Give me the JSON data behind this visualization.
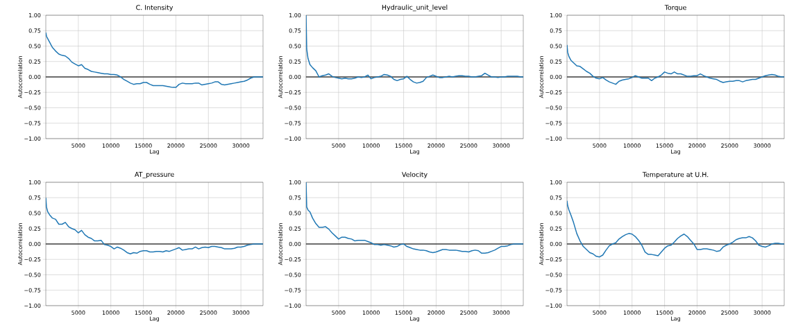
{
  "chart_data": [
    {
      "type": "line",
      "title": "C. Intensity",
      "xlabel": "Lag",
      "ylabel": "Autocorrelation",
      "color": "#1f77b4",
      "grid": true,
      "x": [
        1,
        100,
        300,
        600,
        1000,
        1500,
        2000,
        2500,
        3000,
        3500,
        4000,
        4500,
        5000,
        5500,
        6000,
        6500,
        7000,
        7500,
        8000,
        8500,
        9000,
        9500,
        10000,
        10500,
        11000,
        11500,
        12000,
        12500,
        13000,
        13500,
        14000,
        14500,
        15000,
        15500,
        16000,
        16500,
        17000,
        17500,
        18000,
        18500,
        19000,
        19500,
        20000,
        20500,
        21000,
        21500,
        22000,
        22500,
        23000,
        23500,
        24000,
        24500,
        25000,
        25500,
        26000,
        26500,
        27000,
        27500,
        28000,
        28500,
        29000,
        29500,
        30000,
        30500,
        31000,
        31500,
        32000,
        32500,
        33000,
        33400
      ],
      "values": [
        0.72,
        0.66,
        0.62,
        0.56,
        0.48,
        0.42,
        0.37,
        0.35,
        0.34,
        0.3,
        0.24,
        0.21,
        0.18,
        0.2,
        0.14,
        0.12,
        0.09,
        0.08,
        0.07,
        0.06,
        0.05,
        0.05,
        0.04,
        0.04,
        0.03,
        0.0,
        -0.04,
        -0.07,
        -0.1,
        -0.12,
        -0.11,
        -0.11,
        -0.09,
        -0.09,
        -0.12,
        -0.14,
        -0.14,
        -0.14,
        -0.14,
        -0.15,
        -0.16,
        -0.17,
        -0.17,
        -0.12,
        -0.1,
        -0.11,
        -0.11,
        -0.11,
        -0.1,
        -0.1,
        -0.13,
        -0.12,
        -0.11,
        -0.1,
        -0.08,
        -0.08,
        -0.12,
        -0.13,
        -0.12,
        -0.11,
        -0.1,
        -0.09,
        -0.08,
        -0.07,
        -0.05,
        -0.02,
        0.0,
        0.0,
        0.0,
        0.0
      ],
      "xlim": [
        1,
        33400
      ],
      "xticks": [
        5000,
        10000,
        15000,
        20000,
        25000,
        30000
      ],
      "ylim": [
        -1,
        1
      ],
      "yticks": [
        {
          "value": -1,
          "label": "−1.00"
        },
        {
          "value": -0.75,
          "label": "−0.75"
        },
        {
          "value": -0.5,
          "label": "−0.50"
        },
        {
          "value": -0.25,
          "label": "−0.25"
        },
        {
          "value": 0,
          "label": "0.00"
        },
        {
          "value": 0.25,
          "label": "0.25"
        },
        {
          "value": 0.5,
          "label": "0.50"
        },
        {
          "value": 0.75,
          "label": "0.75"
        },
        {
          "value": 1,
          "label": "1.00"
        }
      ],
      "ref_lines": [
        {
          "axis": "y",
          "value": 0,
          "color": "#404040",
          "line_style": "solid"
        }
      ]
    },
    {
      "type": "line",
      "title": "Hydraulic_unit_level",
      "xlabel": "Lag",
      "ylabel": "Autocorrelation",
      "color": "#1f77b4",
      "grid": true,
      "x": [
        1,
        100,
        300,
        600,
        1000,
        1500,
        2000,
        2500,
        3000,
        3500,
        4000,
        4500,
        5000,
        5500,
        6000,
        6500,
        7000,
        7500,
        8000,
        8500,
        9000,
        9500,
        10000,
        10500,
        11000,
        11500,
        12000,
        12500,
        13000,
        13500,
        14000,
        14500,
        15000,
        15500,
        16000,
        16500,
        17000,
        17500,
        18000,
        18500,
        19000,
        19500,
        20000,
        20500,
        21000,
        21500,
        22000,
        22500,
        23000,
        23500,
        24000,
        24500,
        25000,
        25500,
        26000,
        26500,
        27000,
        27500,
        28000,
        28500,
        29000,
        29500,
        30000,
        30500,
        31000,
        31500,
        32000,
        32500,
        33000,
        33400
      ],
      "values": [
        1.0,
        0.45,
        0.3,
        0.2,
        0.15,
        0.1,
        0.0,
        0.02,
        0.03,
        0.05,
        0.01,
        -0.01,
        -0.02,
        -0.03,
        -0.02,
        -0.03,
        -0.03,
        -0.02,
        0.0,
        -0.01,
        0.0,
        0.03,
        -0.03,
        -0.01,
        0.0,
        0.01,
        0.04,
        0.03,
        0.01,
        -0.04,
        -0.06,
        -0.04,
        -0.03,
        0.01,
        -0.04,
        -0.08,
        -0.1,
        -0.09,
        -0.07,
        -0.01,
        0.01,
        0.03,
        0.01,
        -0.01,
        -0.01,
        0.0,
        0.01,
        0.0,
        0.01,
        0.02,
        0.02,
        0.01,
        0.01,
        0.0,
        0.0,
        0.01,
        0.02,
        0.06,
        0.03,
        0.0,
        0.0,
        -0.01,
        0.0,
        0.0,
        0.01,
        0.01,
        0.01,
        0.01,
        0.0,
        0.0
      ],
      "xlim": [
        1,
        33400
      ],
      "xticks": [
        5000,
        10000,
        15000,
        20000,
        25000,
        30000
      ],
      "ylim": [
        -1,
        1
      ],
      "yticks": [
        {
          "value": -1,
          "label": "−1.00"
        },
        {
          "value": -0.75,
          "label": "−0.75"
        },
        {
          "value": -0.5,
          "label": "−0.50"
        },
        {
          "value": -0.25,
          "label": "−0.25"
        },
        {
          "value": 0,
          "label": "0.00"
        },
        {
          "value": 0.25,
          "label": "0.25"
        },
        {
          "value": 0.5,
          "label": "0.50"
        },
        {
          "value": 0.75,
          "label": "0.75"
        },
        {
          "value": 1,
          "label": "1.00"
        }
      ],
      "ref_lines": [
        {
          "axis": "y",
          "value": 0,
          "color": "#404040",
          "line_style": "solid"
        }
      ]
    },
    {
      "type": "line",
      "title": "Torque",
      "xlabel": "Lag",
      "ylabel": "Autocorrelation",
      "color": "#1f77b4",
      "grid": true,
      "x": [
        1,
        100,
        300,
        600,
        1000,
        1500,
        2000,
        2500,
        3000,
        3500,
        4000,
        4500,
        5000,
        5500,
        6000,
        6500,
        7000,
        7500,
        8000,
        8500,
        9000,
        9500,
        10000,
        10500,
        11000,
        11500,
        12000,
        12500,
        13000,
        13500,
        14000,
        14500,
        15000,
        15500,
        16000,
        16500,
        17000,
        17500,
        18000,
        18500,
        19000,
        19500,
        20000,
        20500,
        21000,
        21500,
        22000,
        22500,
        23000,
        23500,
        24000,
        24500,
        25000,
        25500,
        26000,
        26500,
        27000,
        27500,
        28000,
        28500,
        29000,
        29500,
        30000,
        30500,
        31000,
        31500,
        32000,
        32500,
        33000,
        33400
      ],
      "values": [
        0.52,
        0.4,
        0.33,
        0.27,
        0.23,
        0.18,
        0.17,
        0.13,
        0.09,
        0.06,
        0.01,
        -0.02,
        -0.03,
        -0.01,
        -0.05,
        -0.08,
        -0.1,
        -0.12,
        -0.07,
        -0.05,
        -0.04,
        -0.03,
        -0.01,
        0.02,
        0.0,
        -0.02,
        -0.02,
        -0.02,
        -0.06,
        -0.02,
        0.0,
        0.03,
        0.08,
        0.06,
        0.05,
        0.08,
        0.05,
        0.05,
        0.03,
        0.01,
        0.01,
        0.02,
        0.02,
        0.05,
        0.02,
        0.0,
        -0.02,
        -0.03,
        -0.04,
        -0.07,
        -0.09,
        -0.08,
        -0.07,
        -0.07,
        -0.06,
        -0.06,
        -0.08,
        -0.06,
        -0.05,
        -0.04,
        -0.04,
        -0.02,
        0.0,
        0.02,
        0.03,
        0.04,
        0.03,
        0.01,
        0.0,
        0.0
      ],
      "xlim": [
        1,
        33400
      ],
      "xticks": [
        5000,
        10000,
        15000,
        20000,
        25000,
        30000
      ],
      "ylim": [
        -1,
        1
      ],
      "yticks": [
        {
          "value": -1,
          "label": "−1.00"
        },
        {
          "value": -0.75,
          "label": "−0.75"
        },
        {
          "value": -0.5,
          "label": "−0.50"
        },
        {
          "value": -0.25,
          "label": "−0.25"
        },
        {
          "value": 0,
          "label": "0.00"
        },
        {
          "value": 0.25,
          "label": "0.25"
        },
        {
          "value": 0.5,
          "label": "0.50"
        },
        {
          "value": 0.75,
          "label": "0.75"
        },
        {
          "value": 1,
          "label": "1.00"
        }
      ],
      "ref_lines": [
        {
          "axis": "y",
          "value": 0,
          "color": "#404040",
          "line_style": "solid"
        }
      ]
    },
    {
      "type": "line",
      "title": "AT_pressure",
      "xlabel": "Lag",
      "ylabel": "Autocorrelation",
      "color": "#1f77b4",
      "grid": true,
      "x": [
        1,
        100,
        300,
        600,
        1000,
        1500,
        2000,
        2500,
        3000,
        3500,
        4000,
        4500,
        5000,
        5500,
        6000,
        6500,
        7000,
        7500,
        8000,
        8500,
        9000,
        9500,
        10000,
        10500,
        11000,
        11500,
        12000,
        12500,
        13000,
        13500,
        14000,
        14500,
        15000,
        15500,
        16000,
        16500,
        17000,
        17500,
        18000,
        18500,
        19000,
        19500,
        20000,
        20500,
        21000,
        21500,
        22000,
        22500,
        23000,
        23500,
        24000,
        24500,
        25000,
        25500,
        26000,
        26500,
        27000,
        27500,
        28000,
        28500,
        29000,
        29500,
        30000,
        30500,
        31000,
        31500,
        32000,
        32500,
        33000,
        33400
      ],
      "values": [
        0.75,
        0.6,
        0.52,
        0.47,
        0.42,
        0.4,
        0.32,
        0.32,
        0.35,
        0.28,
        0.25,
        0.23,
        0.18,
        0.22,
        0.15,
        0.11,
        0.09,
        0.05,
        0.05,
        0.06,
        -0.01,
        -0.02,
        -0.04,
        -0.08,
        -0.05,
        -0.07,
        -0.1,
        -0.14,
        -0.16,
        -0.14,
        -0.15,
        -0.12,
        -0.11,
        -0.11,
        -0.13,
        -0.13,
        -0.12,
        -0.12,
        -0.13,
        -0.11,
        -0.12,
        -0.1,
        -0.08,
        -0.06,
        -0.1,
        -0.09,
        -0.08,
        -0.08,
        -0.05,
        -0.08,
        -0.06,
        -0.05,
        -0.06,
        -0.04,
        -0.04,
        -0.05,
        -0.06,
        -0.08,
        -0.08,
        -0.08,
        -0.07,
        -0.05,
        -0.05,
        -0.04,
        -0.02,
        -0.01,
        0.0,
        0.0,
        0.0,
        0.0
      ],
      "xlim": [
        1,
        33400
      ],
      "xticks": [
        5000,
        10000,
        15000,
        20000,
        25000,
        30000
      ],
      "ylim": [
        -1,
        1
      ],
      "yticks": [
        {
          "value": -1,
          "label": "−1.00"
        },
        {
          "value": -0.75,
          "label": "−0.75"
        },
        {
          "value": -0.5,
          "label": "−0.50"
        },
        {
          "value": -0.25,
          "label": "−0.25"
        },
        {
          "value": 0,
          "label": "0.00"
        },
        {
          "value": 0.25,
          "label": "0.25"
        },
        {
          "value": 0.5,
          "label": "0.50"
        },
        {
          "value": 0.75,
          "label": "0.75"
        },
        {
          "value": 1,
          "label": "1.00"
        }
      ],
      "ref_lines": [
        {
          "axis": "y",
          "value": 0,
          "color": "#404040",
          "line_style": "solid"
        }
      ]
    },
    {
      "type": "line",
      "title": "Velocity",
      "xlabel": "Lag",
      "ylabel": "Autocorrelation",
      "color": "#1f77b4",
      "grid": true,
      "x": [
        1,
        100,
        300,
        600,
        1000,
        1500,
        2000,
        2500,
        3000,
        3500,
        4000,
        4500,
        5000,
        5500,
        6000,
        6500,
        7000,
        7500,
        8000,
        8500,
        9000,
        9500,
        10000,
        10500,
        11000,
        11500,
        12000,
        12500,
        13000,
        13500,
        14000,
        14500,
        15000,
        15500,
        16000,
        16500,
        17000,
        17500,
        18000,
        18500,
        19000,
        19500,
        20000,
        20500,
        21000,
        21500,
        22000,
        22500,
        23000,
        23500,
        24000,
        24500,
        25000,
        25500,
        26000,
        26500,
        27000,
        27500,
        28000,
        28500,
        29000,
        29500,
        30000,
        30500,
        31000,
        31500,
        32000,
        32500,
        33000,
        33400
      ],
      "values": [
        1.0,
        0.6,
        0.55,
        0.52,
        0.42,
        0.33,
        0.27,
        0.27,
        0.28,
        0.24,
        0.18,
        0.13,
        0.08,
        0.11,
        0.11,
        0.09,
        0.08,
        0.05,
        0.06,
        0.06,
        0.06,
        0.04,
        0.02,
        -0.01,
        -0.01,
        -0.02,
        -0.01,
        -0.02,
        -0.03,
        -0.05,
        -0.04,
        -0.01,
        0.0,
        -0.04,
        -0.06,
        -0.08,
        -0.09,
        -0.1,
        -0.1,
        -0.11,
        -0.13,
        -0.14,
        -0.13,
        -0.11,
        -0.09,
        -0.09,
        -0.1,
        -0.1,
        -0.1,
        -0.11,
        -0.12,
        -0.12,
        -0.13,
        -0.11,
        -0.1,
        -0.11,
        -0.15,
        -0.15,
        -0.14,
        -0.12,
        -0.1,
        -0.07,
        -0.04,
        -0.04,
        -0.03,
        -0.01,
        0.0,
        0.0,
        0.0,
        0.0
      ],
      "xlim": [
        1,
        33400
      ],
      "xticks": [
        5000,
        10000,
        15000,
        20000,
        25000,
        30000
      ],
      "ylim": [
        -1,
        1
      ],
      "yticks": [
        {
          "value": -1,
          "label": "−1.00"
        },
        {
          "value": -0.75,
          "label": "−0.75"
        },
        {
          "value": -0.5,
          "label": "−0.50"
        },
        {
          "value": -0.25,
          "label": "−0.25"
        },
        {
          "value": 0,
          "label": "0.00"
        },
        {
          "value": 0.25,
          "label": "0.25"
        },
        {
          "value": 0.5,
          "label": "0.50"
        },
        {
          "value": 0.75,
          "label": "0.75"
        },
        {
          "value": 1,
          "label": "1.00"
        }
      ],
      "ref_lines": [
        {
          "axis": "y",
          "value": 0,
          "color": "#404040",
          "line_style": "solid"
        }
      ]
    },
    {
      "type": "line",
      "title": "Temperature at U.H.",
      "xlabel": "Lag",
      "ylabel": "Autocorrelation",
      "color": "#1f77b4",
      "grid": true,
      "x": [
        1,
        100,
        300,
        600,
        1000,
        1500,
        2000,
        2500,
        3000,
        3500,
        4000,
        4500,
        5000,
        5500,
        6000,
        6500,
        7000,
        7500,
        8000,
        8500,
        9000,
        9500,
        10000,
        10500,
        11000,
        11500,
        12000,
        12500,
        13000,
        13500,
        14000,
        14500,
        15000,
        15500,
        16000,
        16500,
        17000,
        17500,
        18000,
        18500,
        19000,
        19500,
        20000,
        20500,
        21000,
        21500,
        22000,
        22500,
        23000,
        23500,
        24000,
        24500,
        25000,
        25500,
        26000,
        26500,
        27000,
        27500,
        28000,
        28500,
        29000,
        29500,
        30000,
        30500,
        31000,
        31500,
        32000,
        32500,
        33000,
        33400
      ],
      "values": [
        0.7,
        0.62,
        0.55,
        0.47,
        0.35,
        0.17,
        0.05,
        -0.04,
        -0.09,
        -0.14,
        -0.16,
        -0.2,
        -0.21,
        -0.18,
        -0.1,
        -0.03,
        0.0,
        0.02,
        0.08,
        0.12,
        0.15,
        0.17,
        0.16,
        0.12,
        0.06,
        -0.02,
        -0.13,
        -0.17,
        -0.17,
        -0.18,
        -0.19,
        -0.13,
        -0.07,
        -0.03,
        -0.02,
        0.03,
        0.09,
        0.13,
        0.16,
        0.12,
        0.06,
        0.0,
        -0.09,
        -0.09,
        -0.08,
        -0.08,
        -0.09,
        -0.1,
        -0.12,
        -0.11,
        -0.05,
        -0.02,
        0.0,
        0.03,
        0.07,
        0.09,
        0.1,
        0.1,
        0.12,
        0.1,
        0.05,
        -0.02,
        -0.04,
        -0.05,
        -0.03,
        0.0,
        0.01,
        0.01,
        0.0,
        0.0
      ],
      "xlim": [
        1,
        33400
      ],
      "xticks": [
        5000,
        10000,
        15000,
        20000,
        25000,
        30000
      ],
      "ylim": [
        -1,
        1
      ],
      "yticks": [
        {
          "value": -1,
          "label": "−1.00"
        },
        {
          "value": -0.75,
          "label": "−0.75"
        },
        {
          "value": -0.5,
          "label": "−0.50"
        },
        {
          "value": -0.25,
          "label": "−0.25"
        },
        {
          "value": 0,
          "label": "0.00"
        },
        {
          "value": 0.25,
          "label": "0.25"
        },
        {
          "value": 0.5,
          "label": "0.50"
        },
        {
          "value": 0.75,
          "label": "0.75"
        },
        {
          "value": 1,
          "label": "1.00"
        }
      ],
      "ref_lines": [
        {
          "axis": "y",
          "value": 0,
          "color": "#404040",
          "line_style": "solid"
        }
      ]
    }
  ]
}
